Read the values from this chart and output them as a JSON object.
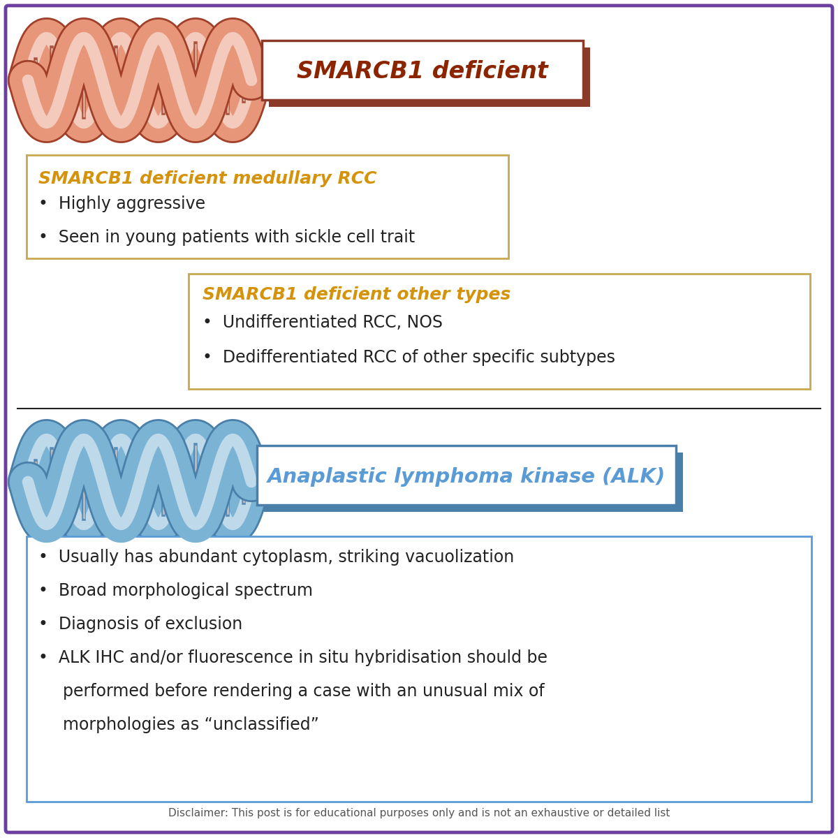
{
  "bg_color": "#ffffff",
  "border_color": "#6B3FA0",
  "divider_color": "#222222",
  "top_section": {
    "title": "SMARCB1 deficient",
    "title_color": "#8B2500",
    "title_border": "#8B3A2A",
    "title_shadow": "#8B3A2A",
    "dna_color_outer": "#E8967A",
    "dna_color_outline": "#A0402A",
    "box1_title": "SMARCB1 deficient medullary RCC",
    "box1_title_color": "#D4930A",
    "box1_border": "#C8A850",
    "box1_bullets": [
      "Highly aggressive",
      "Seen in young patients with sickle cell trait"
    ],
    "box2_title": "SMARCB1 deficient other types",
    "box2_title_color": "#D4930A",
    "box2_border": "#C8A850",
    "box2_bullets": [
      "Undifferentiated RCC, NOS",
      "Dedifferentiated RCC of other specific subtypes"
    ]
  },
  "bottom_section": {
    "title": "Anaplastic lymphoma kinase (ALK)",
    "title_color": "#5B9BD5",
    "title_border": "#4A7FAA",
    "title_shadow": "#4A7FAA",
    "dna_color_outer": "#7BB3D5",
    "dna_color_outline": "#4A7FAA",
    "box_border": "#5B9BD5",
    "bullets": [
      "Usually has abundant cytoplasm, striking vacuolization",
      "Broad morphological spectrum",
      "Diagnosis of exclusion",
      "ALK IHC and/or fluorescence in situ hybridisation should be performed before rendering a case with an unusual mix of morphologies as “unclassified”"
    ]
  },
  "disclaimer": "Disclaimer: This post is for educational purposes only and is not an exhaustive or detailed list",
  "disclaimer_color": "#555555"
}
